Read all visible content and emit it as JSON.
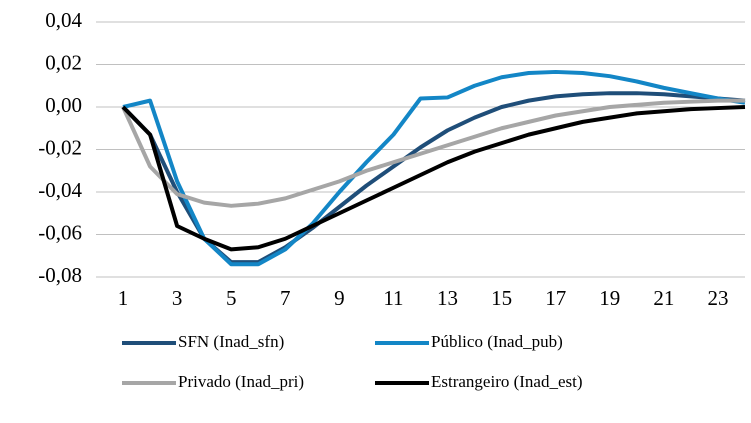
{
  "chart_data": {
    "type": "line",
    "x": [
      1,
      2,
      3,
      4,
      5,
      6,
      7,
      8,
      9,
      10,
      11,
      12,
      13,
      14,
      15,
      16,
      17,
      18,
      19,
      20,
      21,
      22,
      23,
      24
    ],
    "xlim": [
      0,
      24
    ],
    "xticks": [
      1,
      3,
      5,
      7,
      9,
      11,
      13,
      15,
      17,
      19,
      21,
      23
    ],
    "ylim": [
      -0.08,
      0.04
    ],
    "yticks": [
      {
        "value": -0.08,
        "label": "-0,08"
      },
      {
        "value": -0.06,
        "label": "-0,06"
      },
      {
        "value": -0.04,
        "label": "-0,04"
      },
      {
        "value": -0.02,
        "label": "-0,02"
      },
      {
        "value": 0,
        "label": "0,00"
      },
      {
        "value": 0.02,
        "label": "0,02"
      },
      {
        "value": 0.04,
        "label": "0,04"
      }
    ],
    "grid": true,
    "legend": "bottom",
    "series": [
      {
        "name": "SFN (Inad_sfn)",
        "color": "#1f4e79",
        "values": [
          0,
          -0.013,
          -0.04,
          -0.062,
          -0.073,
          -0.073,
          -0.066,
          -0.057,
          -0.047,
          -0.037,
          -0.028,
          -0.019,
          -0.011,
          -0.005,
          0,
          0.003,
          0.005,
          0.006,
          0.0065,
          0.0065,
          0.006,
          0.005,
          0.004,
          0.003
        ]
      },
      {
        "name": "Público (Inad_pub)",
        "color": "#1386c6",
        "values": [
          0,
          0.003,
          -0.035,
          -0.062,
          -0.074,
          -0.074,
          -0.067,
          -0.055,
          -0.04,
          -0.026,
          -0.013,
          0.004,
          0.0045,
          0.01,
          0.014,
          0.016,
          0.0165,
          0.016,
          0.0145,
          0.012,
          0.009,
          0.0065,
          0.004,
          0.002
        ]
      },
      {
        "name": "Privado (Inad_pri)",
        "color": "#a6a6a6",
        "values": [
          0,
          -0.028,
          -0.041,
          -0.045,
          -0.0465,
          -0.0455,
          -0.043,
          -0.039,
          -0.035,
          -0.03,
          -0.026,
          -0.022,
          -0.018,
          -0.014,
          -0.01,
          -0.007,
          -0.004,
          -0.002,
          0,
          0.001,
          0.002,
          0.0025,
          0.003,
          0.003
        ]
      },
      {
        "name": "Estrangeiro (Inad_est)",
        "color": "#000000",
        "values": [
          0,
          -0.013,
          -0.056,
          -0.062,
          -0.067,
          -0.066,
          -0.062,
          -0.056,
          -0.05,
          -0.044,
          -0.038,
          -0.032,
          -0.026,
          -0.021,
          -0.017,
          -0.013,
          -0.01,
          -0.007,
          -0.005,
          -0.003,
          -0.002,
          -0.001,
          -0.0005,
          0
        ]
      }
    ]
  }
}
